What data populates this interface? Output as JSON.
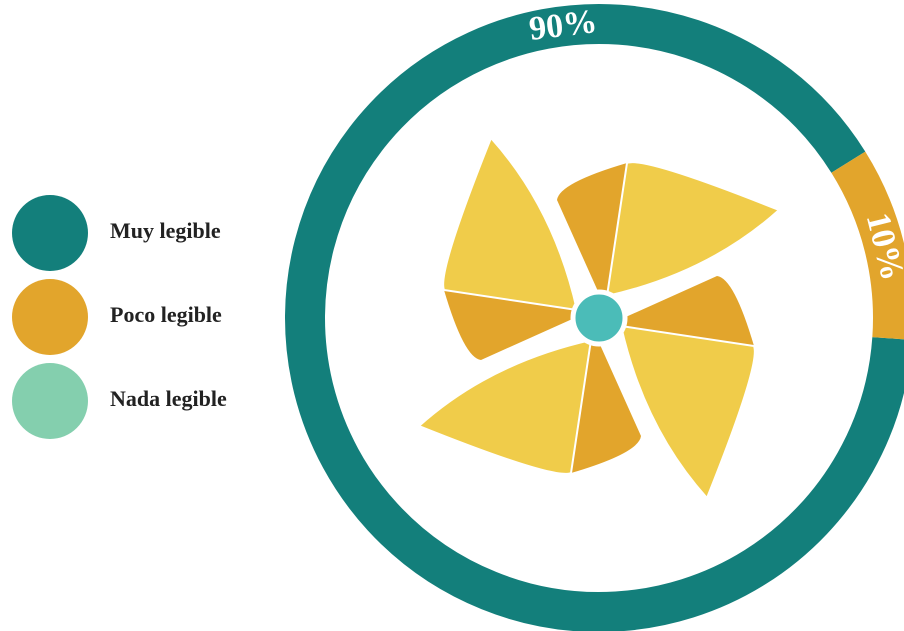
{
  "chart_data": {
    "type": "donut",
    "categories": [
      "Muy legible",
      "Poco legible",
      "Nada legible"
    ],
    "values": [
      90,
      10,
      0
    ],
    "value_labels": [
      "90%",
      "10%",
      null
    ],
    "colors": [
      "#137f7b",
      "#e2a52c",
      "#84cfae"
    ],
    "legend": "left"
  }
}
